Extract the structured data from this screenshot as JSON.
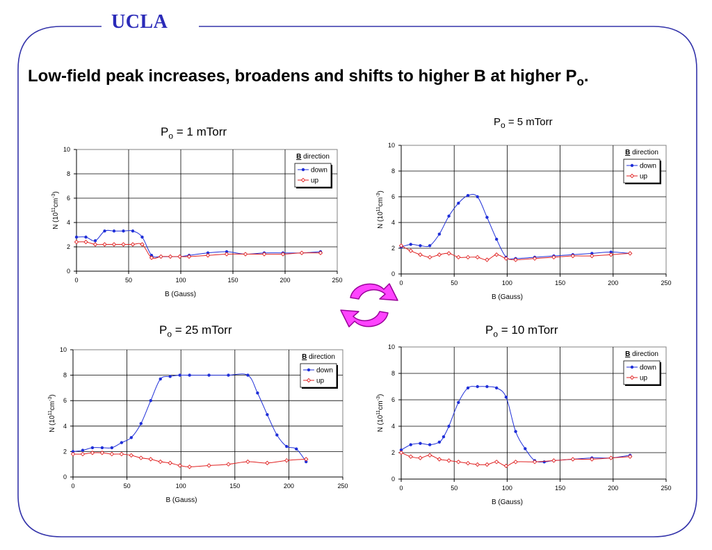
{
  "header": {
    "logo": "UCLA",
    "headline_main": "Low-field peak increases, broadens and shifts to higher B at higher P",
    "headline_sub": "o",
    "headline_end": "."
  },
  "colors": {
    "frame": "#3333aa",
    "down": "#1f2fd8",
    "up": "#e02020",
    "cycle_fill": "#ff44ff",
    "cycle_stroke": "#990099"
  },
  "icons": {
    "cycle": "cycle-arrows-icon"
  },
  "chart_data": [
    {
      "type": "line",
      "title_main": "P",
      "title_sub": "o",
      "title_rest": " = 1 mTorr",
      "xlabel": "B (Gauss)",
      "ylabel": "N (10",
      "ylabel_sup1": "11",
      "ylabel_mid": "cm",
      "ylabel_sup2": "-3",
      "ylabel_end": ")",
      "xlim": [
        0,
        250
      ],
      "ylim": [
        0,
        10
      ],
      "xticks": [
        0,
        50,
        100,
        150,
        200,
        250
      ],
      "yticks": [
        0,
        2,
        4,
        6,
        8,
        10
      ],
      "grid": true,
      "legend_title": "B",
      "legend_title_rest": " direction",
      "legend_position": "top-right",
      "series": [
        {
          "name": "down",
          "color": "#1f2fd8",
          "marker": "dot",
          "x": [
            0,
            9,
            18,
            27,
            36,
            45,
            54,
            63,
            72,
            81,
            90,
            99,
            108,
            126,
            144,
            162,
            180,
            198,
            216,
            234
          ],
          "y": [
            2.8,
            2.8,
            2.5,
            3.3,
            3.3,
            3.3,
            3.3,
            2.8,
            1.3,
            1.2,
            1.2,
            1.2,
            1.3,
            1.5,
            1.6,
            1.4,
            1.5,
            1.5,
            1.5,
            1.6
          ]
        },
        {
          "name": "up",
          "color": "#e02020",
          "marker": "diamond",
          "x": [
            0,
            9,
            18,
            27,
            36,
            45,
            54,
            63,
            72,
            81,
            90,
            99,
            108,
            126,
            144,
            162,
            180,
            198,
            216,
            234
          ],
          "y": [
            2.4,
            2.4,
            2.2,
            2.2,
            2.2,
            2.2,
            2.2,
            2.2,
            1.1,
            1.2,
            1.2,
            1.2,
            1.2,
            1.3,
            1.4,
            1.4,
            1.4,
            1.4,
            1.5,
            1.5
          ]
        }
      ]
    },
    {
      "type": "line",
      "title_main": "P",
      "title_sub": "o",
      "title_rest": " = 5 mTorr",
      "xlabel": "B (Gauss)",
      "ylabel": "N (10",
      "ylabel_sup1": "11",
      "ylabel_mid": "cm",
      "ylabel_sup2": "-3",
      "ylabel_end": ")",
      "xlim": [
        0,
        250
      ],
      "ylim": [
        0,
        10
      ],
      "xticks": [
        0,
        50,
        100,
        150,
        200,
        250
      ],
      "yticks": [
        0,
        2,
        4,
        6,
        8,
        10
      ],
      "grid": true,
      "legend_title": "B",
      "legend_title_rest": " direction",
      "legend_position": "top-right",
      "series": [
        {
          "name": "down",
          "color": "#1f2fd8",
          "marker": "dot",
          "x": [
            0,
            9,
            18,
            27,
            36,
            45,
            54,
            63,
            72,
            81,
            90,
            99,
            108,
            126,
            144,
            162,
            180,
            198,
            216
          ],
          "y": [
            2.1,
            2.3,
            2.2,
            2.2,
            3.1,
            4.5,
            5.5,
            6.1,
            6.0,
            4.4,
            2.7,
            1.3,
            1.2,
            1.3,
            1.4,
            1.5,
            1.6,
            1.7,
            1.6
          ]
        },
        {
          "name": "up",
          "color": "#e02020",
          "marker": "diamond",
          "x": [
            0,
            9,
            18,
            27,
            36,
            45,
            54,
            63,
            72,
            81,
            90,
            99,
            108,
            126,
            144,
            162,
            180,
            198,
            216
          ],
          "y": [
            2.2,
            1.8,
            1.5,
            1.3,
            1.5,
            1.6,
            1.3,
            1.3,
            1.3,
            1.1,
            1.5,
            1.2,
            1.1,
            1.2,
            1.3,
            1.4,
            1.4,
            1.5,
            1.6
          ]
        }
      ]
    },
    {
      "type": "line",
      "title_main": "P",
      "title_sub": "o",
      "title_rest": " = 25 mTorr",
      "xlabel": "B (Gauss)",
      "ylabel": "N (10",
      "ylabel_sup1": "11",
      "ylabel_mid": "cm",
      "ylabel_sup2": "-3",
      "ylabel_end": ")",
      "xlim": [
        0,
        250
      ],
      "ylim": [
        0,
        10
      ],
      "xticks": [
        0,
        50,
        100,
        150,
        200,
        250
      ],
      "yticks": [
        0,
        2,
        4,
        6,
        8,
        10
      ],
      "grid": true,
      "legend_title": "B",
      "legend_title_rest": " direction",
      "legend_position": "top-right",
      "series": [
        {
          "name": "down",
          "color": "#1f2fd8",
          "marker": "dot",
          "x": [
            0,
            9,
            18,
            27,
            36,
            45,
            54,
            63,
            72,
            81,
            90,
            99,
            108,
            126,
            144,
            162,
            171,
            180,
            189,
            198,
            207,
            216
          ],
          "y": [
            2.0,
            2.1,
            2.3,
            2.3,
            2.3,
            2.7,
            3.1,
            4.2,
            6.0,
            7.7,
            7.9,
            8.0,
            8.0,
            8.0,
            8.0,
            8.0,
            6.6,
            4.9,
            3.3,
            2.4,
            2.2,
            1.2
          ]
        },
        {
          "name": "up",
          "color": "#e02020",
          "marker": "diamond",
          "x": [
            0,
            9,
            18,
            27,
            36,
            45,
            54,
            63,
            72,
            81,
            90,
            99,
            108,
            126,
            144,
            162,
            180,
            198,
            216
          ],
          "y": [
            1.8,
            1.8,
            1.9,
            1.9,
            1.8,
            1.8,
            1.7,
            1.5,
            1.4,
            1.2,
            1.1,
            0.9,
            0.8,
            0.9,
            1.0,
            1.2,
            1.1,
            1.3,
            1.4
          ]
        }
      ]
    },
    {
      "type": "line",
      "title_main": "P",
      "title_sub": "o",
      "title_rest": " = 10 mTorr",
      "xlabel": "B (Gauss)",
      "ylabel": "N (10",
      "ylabel_sup1": "11",
      "ylabel_mid": "cm",
      "ylabel_sup2": "-3",
      "ylabel_end": ")",
      "xlim": [
        0,
        250
      ],
      "ylim": [
        0,
        10
      ],
      "xticks": [
        0,
        50,
        100,
        150,
        200,
        250
      ],
      "yticks": [
        0,
        2,
        4,
        6,
        8,
        10
      ],
      "grid": true,
      "legend_title": "B",
      "legend_title_rest": " direction",
      "legend_position": "top-right",
      "series": [
        {
          "name": "down",
          "color": "#1f2fd8",
          "marker": "dot",
          "x": [
            0,
            9,
            18,
            27,
            36,
            40,
            45,
            54,
            63,
            72,
            81,
            90,
            99,
            108,
            117,
            126,
            135,
            144,
            162,
            180,
            198,
            216
          ],
          "y": [
            2.2,
            2.6,
            2.7,
            2.6,
            2.8,
            3.2,
            4.0,
            5.8,
            6.9,
            7.0,
            7.0,
            6.9,
            6.2,
            3.6,
            2.3,
            1.4,
            1.3,
            1.4,
            1.5,
            1.6,
            1.6,
            1.8
          ]
        },
        {
          "name": "up",
          "color": "#e02020",
          "marker": "diamond",
          "x": [
            0,
            9,
            18,
            27,
            36,
            45,
            54,
            63,
            72,
            81,
            90,
            99,
            108,
            126,
            144,
            162,
            180,
            198,
            216
          ],
          "y": [
            2.0,
            1.7,
            1.6,
            1.8,
            1.5,
            1.4,
            1.3,
            1.2,
            1.1,
            1.1,
            1.3,
            1.0,
            1.3,
            1.3,
            1.4,
            1.5,
            1.5,
            1.6,
            1.7
          ]
        }
      ]
    }
  ]
}
